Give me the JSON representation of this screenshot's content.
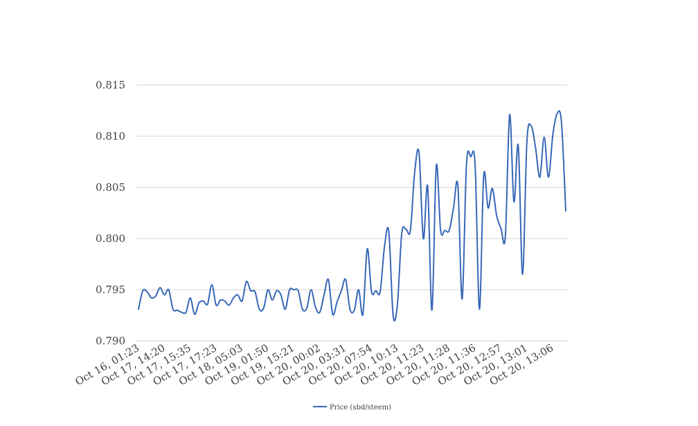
{
  "chart_data": {
    "type": "line",
    "title": "",
    "xlabel": "",
    "ylabel": "",
    "ylim": [
      0.79,
      0.815
    ],
    "yticks": [
      "0.790",
      "0.795",
      "0.800",
      "0.805",
      "0.810",
      "0.815"
    ],
    "xtick_labels": [
      "Oct 16, 01:23",
      "Oct 17, 14:20",
      "Oct 17, 15:35",
      "Oct 17, 17:23",
      "Oct 18, 05:03",
      "Oct 19, 01:50",
      "Oct 19, 15:21",
      "Oct 20, 00:02",
      "Oct 20, 03:31",
      "Oct 20, 07:54",
      "Oct 20, 10:13",
      "Oct 20, 11:23",
      "Oct 20, 11:28",
      "Oct 20, 11:36",
      "Oct 20, 12:57",
      "Oct 20, 13:01",
      "Oct 20, 13:06"
    ],
    "grid": true,
    "legend": "bottom",
    "color": "#3567b7",
    "series": [
      {
        "name": "Price (sbd/steem)",
        "values": [
          0.7931,
          0.7949,
          0.7948,
          0.7942,
          0.7944,
          0.7952,
          0.7945,
          0.795,
          0.7931,
          0.793,
          0.7928,
          0.7928,
          0.7942,
          0.7926,
          0.7937,
          0.7939,
          0.7936,
          0.7955,
          0.7935,
          0.794,
          0.7939,
          0.7935,
          0.7942,
          0.7945,
          0.7939,
          0.7958,
          0.7949,
          0.7948,
          0.7931,
          0.7932,
          0.795,
          0.794,
          0.7949,
          0.7945,
          0.7931,
          0.795,
          0.795,
          0.7949,
          0.7931,
          0.7932,
          0.795,
          0.7933,
          0.7928,
          0.7945,
          0.796,
          0.7926,
          0.7938,
          0.7949,
          0.796,
          0.7931,
          0.793,
          0.795,
          0.7926,
          0.799,
          0.7948,
          0.7949,
          0.7948,
          0.7992,
          0.8007,
          0.7925,
          0.7936,
          0.8005,
          0.8009,
          0.8008,
          0.8065,
          0.8084,
          0.8,
          0.8051,
          0.793,
          0.8071,
          0.8008,
          0.8008,
          0.8008,
          0.803,
          0.8052,
          0.7941,
          0.8073,
          0.808,
          0.8072,
          0.7931,
          0.8062,
          0.803,
          0.8049,
          0.8022,
          0.801,
          0.8002,
          0.8121,
          0.8036,
          0.8091,
          0.7965,
          0.8095,
          0.811,
          0.8089,
          0.806,
          0.8099,
          0.806,
          0.8101,
          0.8122,
          0.8114,
          0.8027
        ]
      }
    ]
  }
}
